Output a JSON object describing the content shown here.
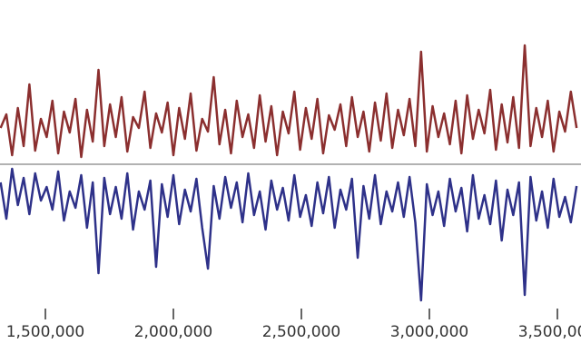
{
  "chart_data": {
    "type": "line",
    "x": [
      1325000,
      1347500,
      1370000,
      1392500,
      1415000,
      1437500,
      1460000,
      1482500,
      1505000,
      1527500,
      1550000,
      1572500,
      1595000,
      1617500,
      1640000,
      1662500,
      1685000,
      1707500,
      1730000,
      1752500,
      1775000,
      1797500,
      1820000,
      1842500,
      1865000,
      1887500,
      1910000,
      1932500,
      1955000,
      1977500,
      2000000,
      2022500,
      2045000,
      2067500,
      2090000,
      2112500,
      2135000,
      2157500,
      2180000,
      2202500,
      2225000,
      2247500,
      2270000,
      2292500,
      2315000,
      2337500,
      2360000,
      2382500,
      2405000,
      2427500,
      2450000,
      2472500,
      2495000,
      2517500,
      2540000,
      2562500,
      2585000,
      2607500,
      2630000,
      2652500,
      2675000,
      2697500,
      2720000,
      2742500,
      2765000,
      2787500,
      2810000,
      2832500,
      2855000,
      2877500,
      2900000,
      2922500,
      2945000,
      2967500,
      2990000,
      3012500,
      3035000,
      3057500,
      3080000,
      3102500,
      3125000,
      3147500,
      3170000,
      3192500,
      3215000,
      3237500,
      3260000,
      3282500,
      3305000,
      3327500,
      3350000,
      3372500,
      3395000,
      3417500,
      3440000,
      3462500,
      3485000,
      3507500,
      3530000,
      3552500,
      3575000
    ],
    "series": [
      {
        "color": "#8b2f2f",
        "values": [
          40,
          55,
          10,
          62,
          20,
          88,
          15,
          50,
          30,
          70,
          12,
          58,
          35,
          72,
          8,
          60,
          25,
          104,
          20,
          66,
          30,
          74,
          14,
          52,
          40,
          80,
          18,
          56,
          35,
          68,
          10,
          62,
          28,
          78,
          15,
          50,
          36,
          96,
          22,
          60,
          12,
          70,
          30,
          55,
          18,
          76,
          25,
          64,
          10,
          58,
          34,
          80,
          16,
          62,
          28,
          72,
          12,
          54,
          38,
          66,
          20,
          74,
          30,
          58,
          14,
          68,
          26,
          78,
          18,
          60,
          32,
          72,
          20,
          124,
          14,
          64,
          30,
          56,
          22,
          70,
          12,
          76,
          28,
          60,
          34,
          82,
          16,
          66,
          24,
          74,
          18,
          131,
          20,
          62,
          30,
          70,
          14,
          58,
          36,
          80,
          40
        ]
      },
      {
        "color": "#2e3189",
        "values": [
          -20,
          -60,
          -5,
          -45,
          -15,
          -55,
          -10,
          -40,
          -25,
          -50,
          -8,
          -62,
          -30,
          -48,
          -12,
          -70,
          -20,
          -120,
          -15,
          -55,
          -25,
          -60,
          -10,
          -72,
          -30,
          -50,
          -18,
          -113,
          -22,
          -58,
          -12,
          -66,
          -28,
          -52,
          -16,
          -70,
          -115,
          -24,
          -60,
          -14,
          -48,
          -20,
          -64,
          -10,
          -56,
          -30,
          -72,
          -18,
          -50,
          -26,
          -62,
          -12,
          -58,
          -34,
          -68,
          -20,
          -54,
          -14,
          -70,
          -28,
          -50,
          -16,
          -103,
          -24,
          -60,
          -12,
          -66,
          -30,
          -52,
          -20,
          -58,
          -14,
          -64,
          -150,
          -22,
          -56,
          -30,
          -68,
          -16,
          -52,
          -26,
          -74,
          -12,
          -60,
          -34,
          -66,
          -18,
          -84,
          -28,
          -56,
          -20,
          -144,
          -14,
          -62,
          -30,
          -70,
          -16,
          -58,
          -36,
          -64,
          -24
        ]
      }
    ],
    "xlim": [
      1322700,
      3592200
    ],
    "ylim": [
      -170,
      181
    ],
    "xticks": [
      {
        "value": 1500000,
        "label": "1,500,000"
      },
      {
        "value": 2000000,
        "label": "2,000,000"
      },
      {
        "value": 2500000,
        "label": "2,500,000"
      },
      {
        "value": 3000000,
        "label": "3,000,000"
      },
      {
        "value": 3500000,
        "label": "3,500,000"
      }
    ]
  }
}
